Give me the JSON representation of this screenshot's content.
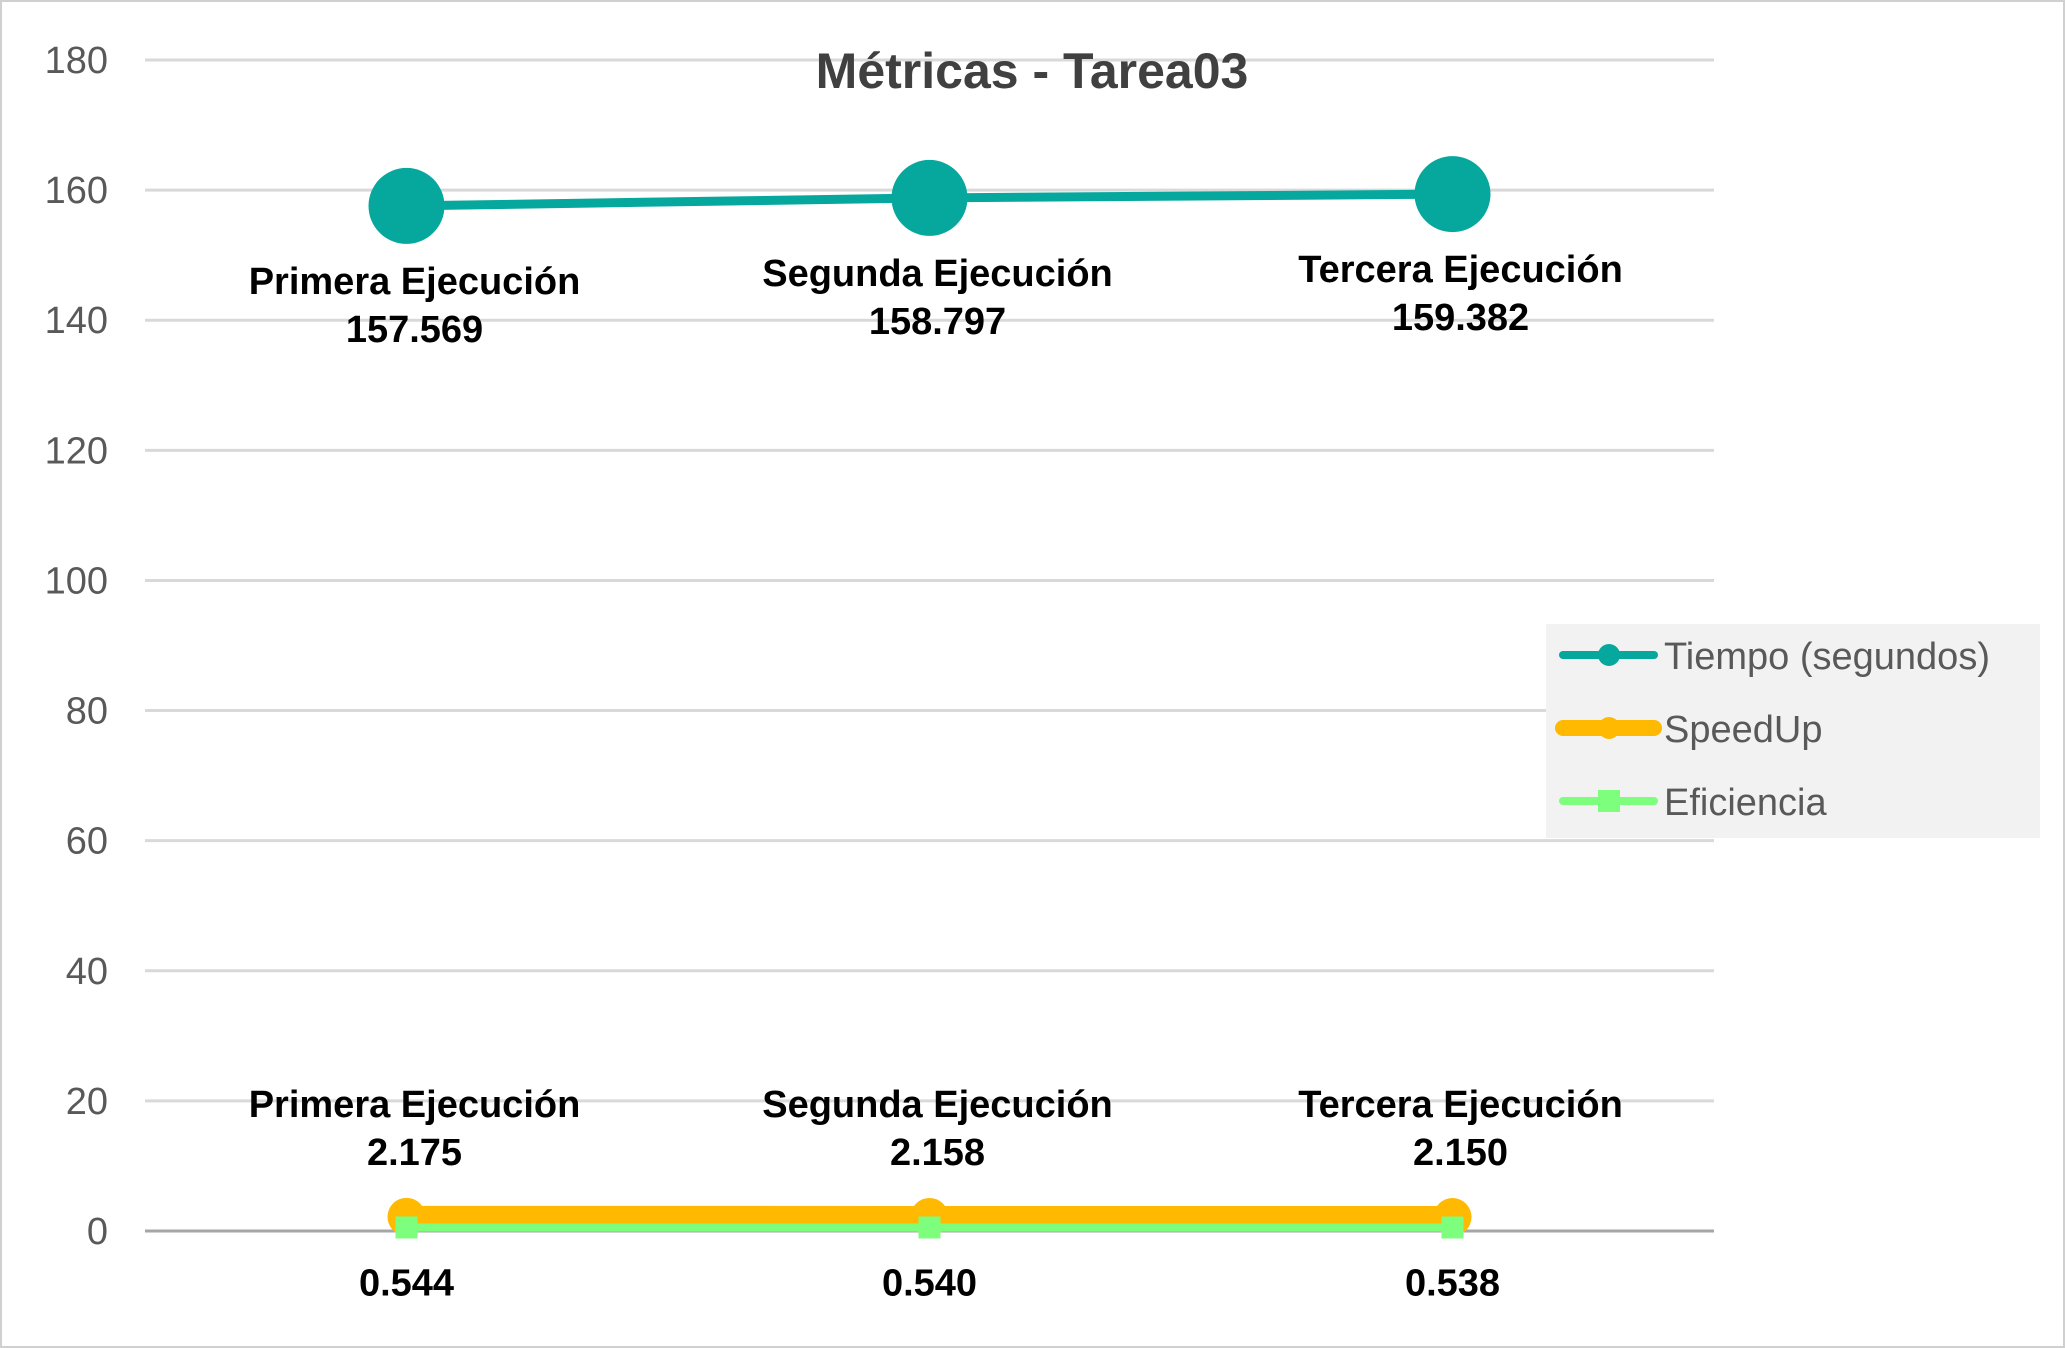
{
  "chart_data": {
    "type": "line",
    "title": "Métricas - Tarea03",
    "xlabel": "",
    "ylabel": "",
    "ylim": [
      0,
      180
    ],
    "yticks": [
      0,
      20,
      40,
      60,
      80,
      100,
      120,
      140,
      160,
      180
    ],
    "grid": true,
    "legend_position": "right",
    "categories": [
      "Primera Ejecución",
      "Segunda Ejecución",
      "Tercera Ejecución"
    ],
    "series": [
      {
        "name": "Tiempo (segundos)",
        "values": [
          157.569,
          158.797,
          159.382
        ],
        "value_labels": [
          "157.569",
          "158.797",
          "159.382"
        ],
        "color": "#06a79d",
        "marker": "circle",
        "label_position": "below",
        "label_shows_category": true
      },
      {
        "name": "SpeedUp",
        "values": [
          2.175,
          2.158,
          2.15
        ],
        "value_labels": [
          "2.175",
          "2.158",
          "2.150"
        ],
        "color": "#ffb900",
        "marker": "circle",
        "label_position": "above",
        "label_shows_category": true
      },
      {
        "name": "Eficiencia",
        "values": [
          0.544,
          0.54,
          0.538
        ],
        "value_labels": [
          "0.544",
          "0.540",
          "0.538"
        ],
        "color": "#7dff7d",
        "marker": "square",
        "label_position": "below",
        "label_shows_category": false
      }
    ]
  }
}
